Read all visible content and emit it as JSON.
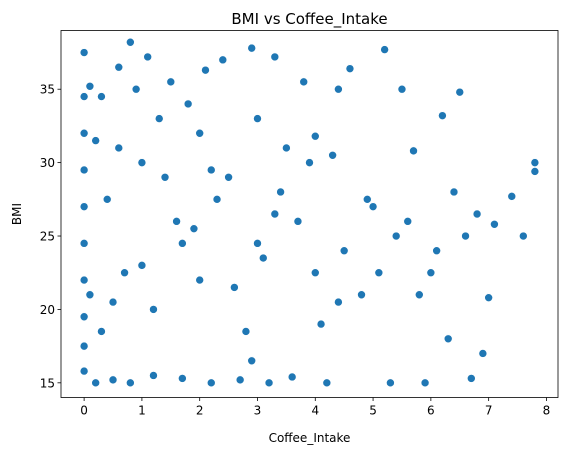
{
  "chart_data": {
    "type": "scatter",
    "title": "BMI vs Coffee_Intake",
    "xlabel": "Coffee_Intake",
    "ylabel": "BMI",
    "xlim": [
      -0.4,
      8.2
    ],
    "ylim": [
      14.0,
      39.0
    ],
    "x_ticks": [
      0,
      1,
      2,
      3,
      4,
      5,
      6,
      7,
      8
    ],
    "y_ticks": [
      15,
      20,
      25,
      30,
      35
    ],
    "grid": false,
    "legend": "none",
    "marker_color": "#1f77b4",
    "marker_edge_color": "#ffffff",
    "series": [
      {
        "x": [
          0.0,
          0.0,
          0.0,
          0.0,
          0.0,
          0.0,
          0.0,
          0.0,
          0.0,
          0.0,
          0.1,
          0.1,
          0.2,
          0.2,
          0.3,
          0.3,
          0.4,
          0.5,
          0.6,
          0.7,
          0.8,
          0.8,
          0.9,
          1.0,
          1.1,
          1.2,
          1.3,
          1.5,
          1.6,
          1.7,
          1.8,
          2.0,
          2.1,
          2.2,
          2.4,
          2.5,
          2.7,
          2.9,
          3.0,
          3.2,
          3.3,
          3.5,
          3.6,
          3.8,
          4.0,
          4.2,
          4.4,
          4.6,
          4.8,
          5.0,
          5.2,
          5.3,
          5.5,
          5.7,
          5.9,
          6.0,
          6.2,
          6.3,
          6.5,
          6.7,
          6.8,
          6.9,
          7.0,
          7.1,
          7.4,
          7.6,
          7.8,
          7.8,
          1.2,
          2.3,
          3.1,
          4.1,
          0.6,
          1.9,
          2.6,
          3.4,
          4.5,
          5.1,
          6.1,
          0.5,
          1.4,
          2.8,
          3.7,
          4.3,
          5.4,
          5.8,
          6.4,
          2.0,
          3.0,
          4.0,
          1.0,
          1.7,
          2.2,
          2.9,
          3.3,
          3.9,
          4.4,
          4.9,
          5.6,
          6.6
        ],
        "y": [
          37.5,
          34.5,
          32.0,
          29.5,
          27.0,
          24.5,
          22.0,
          19.5,
          17.5,
          15.8,
          35.2,
          21.0,
          31.5,
          15.0,
          34.5,
          18.5,
          27.5,
          15.2,
          36.5,
          22.5,
          38.2,
          15.0,
          35.0,
          30.0,
          37.2,
          15.5,
          33.0,
          35.5,
          26.0,
          15.3,
          34.0,
          22.0,
          36.3,
          15.0,
          37.0,
          29.0,
          15.2,
          37.8,
          24.5,
          15.0,
          37.2,
          31.0,
          15.4,
          35.5,
          22.5,
          15.0,
          35.0,
          36.4,
          21.0,
          27.0,
          37.7,
          15.0,
          35.0,
          30.8,
          15.0,
          22.5,
          33.2,
          18.0,
          34.8,
          15.3,
          26.5,
          17.0,
          20.8,
          25.8,
          27.7,
          25.0,
          30.0,
          29.4,
          20.0,
          27.5,
          23.5,
          19.0,
          31.0,
          25.5,
          21.5,
          28.0,
          24.0,
          22.5,
          24.0,
          20.5,
          29.0,
          18.5,
          26.0,
          30.5,
          25.0,
          21.0,
          28.0,
          32.0,
          33.0,
          31.8,
          23.0,
          24.5,
          29.5,
          16.5,
          26.5,
          30.0,
          20.5,
          27.5,
          26.0,
          25.0
        ]
      }
    ]
  }
}
